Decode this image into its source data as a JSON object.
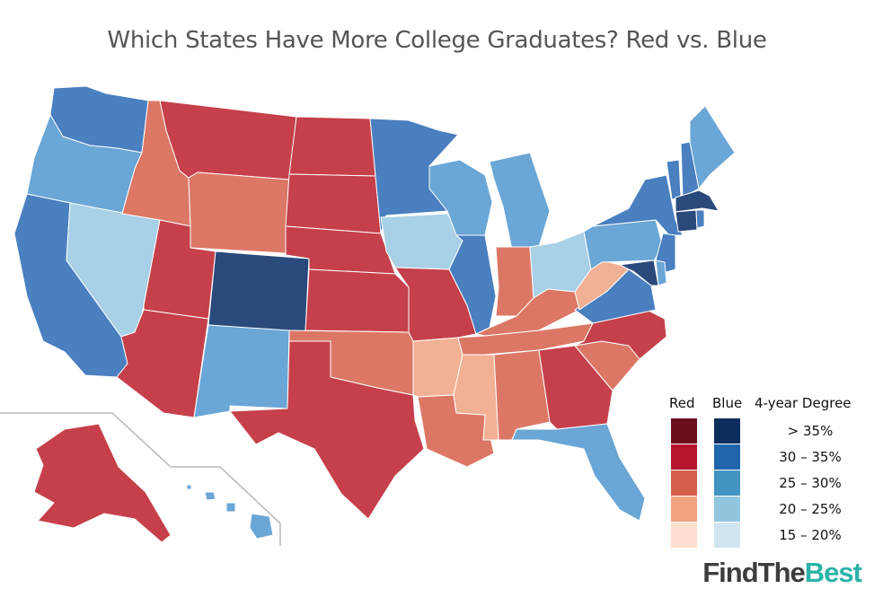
{
  "title": "Which States Have More College Graduates? Red vs. Blue",
  "colors": {
    "red": [
      "#6b0f1e",
      "#b5152b",
      "#d55e4a",
      "#f2a37f",
      "#fde0cf"
    ],
    "blue": [
      "#0d2e5c",
      "#2166ac",
      "#4393c3",
      "#92c5de",
      "#d1e5f0"
    ],
    "map_red": [
      "#6b0f1e",
      "#c5404a",
      "#dc7766",
      "#f2b095",
      "#fde0cf"
    ],
    "map_blue": [
      "#2a4a7c",
      "#4a7fc0",
      "#6aa6d6",
      "#a8d0e6",
      "#d4e6f3"
    ]
  },
  "legend": {
    "red_header": "Red",
    "blue_header": "Blue",
    "degree_header": "4-year Degree",
    "ranges": [
      "> 35%",
      "30 – 35%",
      "25 – 30%",
      "20 – 25%",
      "15 – 20%"
    ]
  },
  "states": [
    {
      "name": "Washington",
      "party": "blue",
      "tier": 1
    },
    {
      "name": "Oregon",
      "party": "blue",
      "tier": 2
    },
    {
      "name": "California",
      "party": "blue",
      "tier": 1
    },
    {
      "name": "Nevada",
      "party": "blue",
      "tier": 3
    },
    {
      "name": "Idaho",
      "party": "red",
      "tier": 2
    },
    {
      "name": "Montana",
      "party": "red",
      "tier": 1
    },
    {
      "name": "Wyoming",
      "party": "red",
      "tier": 2
    },
    {
      "name": "Utah",
      "party": "red",
      "tier": 1
    },
    {
      "name": "Arizona",
      "party": "red",
      "tier": 1
    },
    {
      "name": "Colorado",
      "party": "blue",
      "tier": 0
    },
    {
      "name": "New Mexico",
      "party": "blue",
      "tier": 2
    },
    {
      "name": "North Dakota",
      "party": "red",
      "tier": 1
    },
    {
      "name": "South Dakota",
      "party": "red",
      "tier": 1
    },
    {
      "name": "Nebraska",
      "party": "red",
      "tier": 1
    },
    {
      "name": "Kansas",
      "party": "red",
      "tier": 1
    },
    {
      "name": "Oklahoma",
      "party": "red",
      "tier": 2
    },
    {
      "name": "Texas",
      "party": "red",
      "tier": 1
    },
    {
      "name": "Minnesota",
      "party": "blue",
      "tier": 1
    },
    {
      "name": "Iowa",
      "party": "blue",
      "tier": 3
    },
    {
      "name": "Missouri",
      "party": "red",
      "tier": 1
    },
    {
      "name": "Arkansas",
      "party": "red",
      "tier": 3
    },
    {
      "name": "Louisiana",
      "party": "red",
      "tier": 2
    },
    {
      "name": "Wisconsin",
      "party": "blue",
      "tier": 2
    },
    {
      "name": "Illinois",
      "party": "blue",
      "tier": 1
    },
    {
      "name": "Michigan",
      "party": "blue",
      "tier": 2
    },
    {
      "name": "Indiana",
      "party": "red",
      "tier": 2
    },
    {
      "name": "Ohio",
      "party": "blue",
      "tier": 3
    },
    {
      "name": "Kentucky",
      "party": "red",
      "tier": 2
    },
    {
      "name": "Tennessee",
      "party": "red",
      "tier": 2
    },
    {
      "name": "Mississippi",
      "party": "red",
      "tier": 3
    },
    {
      "name": "Alabama",
      "party": "red",
      "tier": 2
    },
    {
      "name": "Georgia",
      "party": "red",
      "tier": 1
    },
    {
      "name": "Florida",
      "party": "blue",
      "tier": 2
    },
    {
      "name": "South Carolina",
      "party": "red",
      "tier": 2
    },
    {
      "name": "North Carolina",
      "party": "red",
      "tier": 1
    },
    {
      "name": "Virginia",
      "party": "blue",
      "tier": 1
    },
    {
      "name": "West Virginia",
      "party": "red",
      "tier": 3
    },
    {
      "name": "Pennsylvania",
      "party": "blue",
      "tier": 2
    },
    {
      "name": "New York",
      "party": "blue",
      "tier": 1
    },
    {
      "name": "Vermont",
      "party": "blue",
      "tier": 1
    },
    {
      "name": "New Hampshire",
      "party": "blue",
      "tier": 1
    },
    {
      "name": "Maine",
      "party": "blue",
      "tier": 2
    },
    {
      "name": "Massachusetts",
      "party": "blue",
      "tier": 0
    },
    {
      "name": "Connecticut",
      "party": "blue",
      "tier": 0
    },
    {
      "name": "Rhode Island",
      "party": "blue",
      "tier": 1
    },
    {
      "name": "New Jersey",
      "party": "blue",
      "tier": 1
    },
    {
      "name": "Delaware",
      "party": "blue",
      "tier": 2
    },
    {
      "name": "Maryland",
      "party": "blue",
      "tier": 0
    },
    {
      "name": "Alaska",
      "party": "red",
      "tier": 1
    },
    {
      "name": "Hawaii",
      "party": "blue",
      "tier": 2
    }
  ],
  "brand": {
    "part1": "FindThe",
    "part2": "Best"
  }
}
